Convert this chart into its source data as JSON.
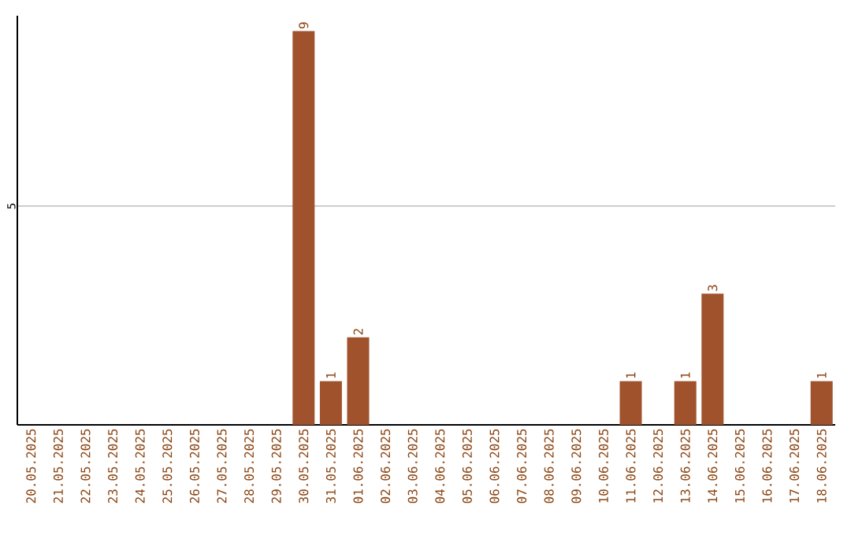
{
  "chart_data": {
    "type": "bar",
    "categories": [
      "20.05.2025",
      "21.05.2025",
      "22.05.2025",
      "23.05.2025",
      "24.05.2025",
      "25.05.2025",
      "26.05.2025",
      "27.05.2025",
      "28.05.2025",
      "29.05.2025",
      "30.05.2025",
      "31.05.2025",
      "01.06.2025",
      "02.06.2025",
      "03.06.2025",
      "04.06.2025",
      "05.06.2025",
      "06.06.2025",
      "07.06.2025",
      "08.06.2025",
      "09.06.2025",
      "10.06.2025",
      "11.06.2025",
      "12.06.2025",
      "13.06.2025",
      "14.06.2025",
      "15.06.2025",
      "16.06.2025",
      "17.06.2025",
      "18.06.2025"
    ],
    "values": [
      0,
      0,
      0,
      0,
      0,
      0,
      0,
      0,
      0,
      0,
      9,
      1,
      2,
      0,
      0,
      0,
      0,
      0,
      0,
      0,
      0,
      0,
      1,
      0,
      1,
      3,
      0,
      0,
      0,
      1
    ],
    "value_labels": [
      null,
      null,
      null,
      null,
      null,
      null,
      null,
      null,
      null,
      null,
      "9",
      "1",
      "2",
      null,
      null,
      null,
      null,
      null,
      null,
      null,
      null,
      null,
      "1",
      null,
      "1",
      "3",
      null,
      null,
      null,
      "1"
    ],
    "color": "#a0522d",
    "ylim": [
      0,
      9.35
    ],
    "yticks": [
      5
    ],
    "grid": "y"
  }
}
